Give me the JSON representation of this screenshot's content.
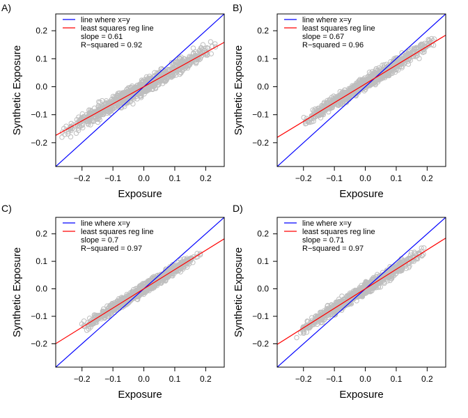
{
  "figure": {
    "xlabel": "Exposure",
    "ylabel": "Synthetic Exposure"
  },
  "chart_data": [
    {
      "type": "scatter",
      "panel_label": "A)",
      "xlabel": "Exposure",
      "ylabel": "Synthetic Exposure",
      "xlim": [
        -0.285,
        0.26
      ],
      "ylim": [
        -0.285,
        0.26
      ],
      "xticks": [
        -0.2,
        -0.1,
        0.0,
        0.1,
        0.2
      ],
      "yticks": [
        -0.2,
        -0.1,
        0.0,
        0.1,
        0.2
      ],
      "xtick_labels": [
        "−0.2",
        "−0.1",
        "0.0",
        "0.1",
        "0.2"
      ],
      "ytick_labels": [
        "−0.2",
        "−0.1",
        "0.0",
        "0.1",
        "0.2"
      ],
      "point_cloud": {
        "x_range": [
          -0.27,
          0.24
        ],
        "slope": 0.61,
        "intercept": 0.0,
        "y_spread": 0.014,
        "marker": "open-circle"
      },
      "lines": [
        {
          "name": "line where x=y",
          "slope": 1.0,
          "intercept": 0.0
        },
        {
          "name": "least squares reg line",
          "slope": 0.61,
          "intercept": 0.0
        }
      ],
      "legend": {
        "position": "top-left",
        "entries": [
          "line where x=y",
          "least squares reg line"
        ],
        "extra": [
          "slope = 0.61",
          "R−squared = 0.92"
        ]
      }
    },
    {
      "type": "scatter",
      "panel_label": "B)",
      "xlabel": "Exposure",
      "ylabel": "Synthetic Exposure",
      "xlim": [
        -0.285,
        0.26
      ],
      "ylim": [
        -0.285,
        0.26
      ],
      "xticks": [
        -0.2,
        -0.1,
        0.0,
        0.1,
        0.2
      ],
      "yticks": [
        -0.2,
        -0.1,
        0.0,
        0.1,
        0.2
      ],
      "xtick_labels": [
        "−0.2",
        "−0.1",
        "0.0",
        "0.1",
        "0.2"
      ],
      "ytick_labels": [
        "−0.2",
        "−0.1",
        "0.0",
        "0.1",
        "0.2"
      ],
      "point_cloud": {
        "x_range": [
          -0.22,
          0.235
        ],
        "slope": 0.67,
        "intercept": 0.012,
        "y_spread": 0.011,
        "marker": "open-circle"
      },
      "lines": [
        {
          "name": "line where x=y",
          "slope": 1.0,
          "intercept": 0.0
        },
        {
          "name": "least squares reg line",
          "slope": 0.67,
          "intercept": 0.01
        }
      ],
      "legend": {
        "position": "top-left",
        "entries": [
          "line where x=y",
          "least squares reg line"
        ],
        "extra": [
          "slope = 0.67",
          "R−squared = 0.96"
        ]
      }
    },
    {
      "type": "scatter",
      "panel_label": "C)",
      "xlabel": "Exposure",
      "ylabel": "Synthetic Exposure",
      "xlim": [
        -0.285,
        0.26
      ],
      "ylim": [
        -0.285,
        0.26
      ],
      "xticks": [
        -0.2,
        -0.1,
        0.0,
        0.1,
        0.2
      ],
      "yticks": [
        -0.2,
        -0.1,
        0.0,
        0.1,
        0.2
      ],
      "xtick_labels": [
        "−0.2",
        "−0.1",
        "0.0",
        "0.1",
        "0.2"
      ],
      "ytick_labels": [
        "−0.2",
        "−0.1",
        "0.0",
        "0.1",
        "0.2"
      ],
      "point_cloud": {
        "x_range": [
          -0.205,
          0.19
        ],
        "slope": 0.7,
        "intercept": 0.0,
        "y_spread": 0.009,
        "marker": "open-circle"
      },
      "lines": [
        {
          "name": "line where x=y",
          "slope": 1.0,
          "intercept": 0.0
        },
        {
          "name": "least squares reg line",
          "slope": 0.7,
          "intercept": 0.0
        }
      ],
      "legend": {
        "position": "top-left",
        "entries": [
          "line where x=y",
          "least squares reg line"
        ],
        "extra": [
          "slope = 0.7",
          "R−squared = 0.97"
        ]
      }
    },
    {
      "type": "scatter",
      "panel_label": "D)",
      "xlabel": "Exposure",
      "ylabel": "Synthetic Exposure",
      "xlim": [
        -0.285,
        0.26
      ],
      "ylim": [
        -0.285,
        0.26
      ],
      "xticks": [
        -0.2,
        -0.1,
        0.0,
        0.1,
        0.2
      ],
      "yticks": [
        -0.2,
        -0.1,
        0.0,
        0.1,
        0.2
      ],
      "xtick_labels": [
        "−0.2",
        "−0.1",
        "0.0",
        "0.1",
        "0.2"
      ],
      "ytick_labels": [
        "−0.2",
        "−0.1",
        "0.0",
        "0.1",
        "0.2"
      ],
      "point_cloud": {
        "x_range": [
          -0.225,
          0.195
        ],
        "slope": 0.71,
        "intercept": 0.0,
        "y_spread": 0.01,
        "marker": "open-circle"
      },
      "lines": [
        {
          "name": "line where x=y",
          "slope": 1.0,
          "intercept": 0.0
        },
        {
          "name": "least squares reg line",
          "slope": 0.71,
          "intercept": 0.0
        }
      ],
      "legend": {
        "position": "top-left",
        "entries": [
          "line where x=y",
          "least squares reg line"
        ],
        "extra": [
          "slope = 0.71",
          "R−squared = 0.97"
        ]
      }
    }
  ],
  "colors": {
    "identity_line": "#0000ff",
    "regression_line": "#ff0000",
    "points": "#bebebe",
    "axis": "#000000",
    "background": "#ffffff"
  }
}
